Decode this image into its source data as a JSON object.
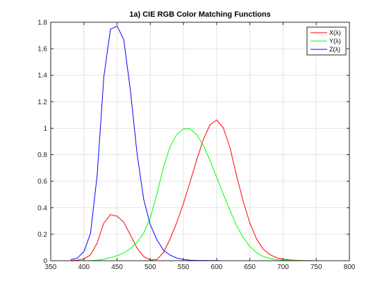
{
  "chart_data": {
    "type": "line",
    "title": "1a) CIE RGB Color Matching Functions",
    "xlabel": "",
    "ylabel": "",
    "xlim": [
      350,
      800
    ],
    "ylim": [
      0,
      1.8
    ],
    "x_ticks": [
      350,
      400,
      450,
      500,
      550,
      600,
      650,
      700,
      750,
      800
    ],
    "y_ticks": [
      0,
      0.2,
      0.4,
      0.6,
      0.8,
      1,
      1.2,
      1.4,
      1.6,
      1.8
    ],
    "x_tick_labels": [
      "350",
      "400",
      "450",
      "500",
      "550",
      "600",
      "650",
      "700",
      "750",
      "800"
    ],
    "y_tick_labels": [
      "0",
      "0.2",
      "0.4",
      "0.6",
      "0.8",
      "1",
      "1.2",
      "1.4",
      "1.6",
      "1.8"
    ],
    "grid": true,
    "legend_position": "top-right",
    "x": [
      380,
      390,
      400,
      410,
      420,
      430,
      440,
      450,
      460,
      470,
      480,
      490,
      500,
      510,
      520,
      530,
      540,
      550,
      560,
      570,
      580,
      590,
      600,
      610,
      620,
      630,
      640,
      650,
      660,
      670,
      680,
      690,
      700,
      710,
      720,
      730,
      740,
      750,
      760,
      770,
      780
    ],
    "series": [
      {
        "name": "X(λ)",
        "color": "#ff0000",
        "values": [
          0.001,
          0.004,
          0.014,
          0.044,
          0.134,
          0.284,
          0.348,
          0.336,
          0.291,
          0.195,
          0.096,
          0.032,
          0.005,
          0.009,
          0.063,
          0.166,
          0.29,
          0.433,
          0.595,
          0.762,
          0.916,
          1.026,
          1.062,
          1.003,
          0.854,
          0.642,
          0.448,
          0.284,
          0.165,
          0.087,
          0.047,
          0.023,
          0.011,
          0.006,
          0.003,
          0.001,
          0.001,
          0.0,
          0.0,
          0.0,
          0.0
        ]
      },
      {
        "name": "Y(λ)",
        "color": "#00ff00",
        "values": [
          0.0,
          0.0,
          0.0,
          0.001,
          0.004,
          0.012,
          0.023,
          0.038,
          0.06,
          0.091,
          0.139,
          0.208,
          0.323,
          0.503,
          0.71,
          0.862,
          0.954,
          0.995,
          0.995,
          0.952,
          0.87,
          0.757,
          0.631,
          0.503,
          0.381,
          0.265,
          0.175,
          0.107,
          0.061,
          0.032,
          0.017,
          0.008,
          0.004,
          0.002,
          0.001,
          0.001,
          0.0,
          0.0,
          0.0,
          0.0,
          0.0
        ]
      },
      {
        "name": "Z(λ)",
        "color": "#0000ff",
        "values": [
          0.007,
          0.02,
          0.068,
          0.207,
          0.646,
          1.386,
          1.747,
          1.772,
          1.669,
          1.288,
          0.813,
          0.465,
          0.272,
          0.158,
          0.078,
          0.042,
          0.02,
          0.009,
          0.004,
          0.002,
          0.002,
          0.001,
          0.001,
          0.0,
          0.0,
          0.0,
          0.0,
          0.0,
          0.0,
          0.0,
          0.0,
          0.0,
          0.0,
          0.0,
          0.0,
          0.0,
          0.0,
          0.0,
          0.0,
          0.0,
          0.0
        ]
      }
    ]
  }
}
